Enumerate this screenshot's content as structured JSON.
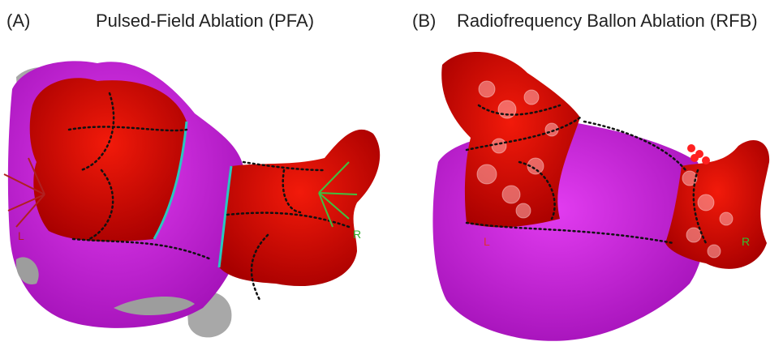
{
  "panels": [
    {
      "letter": "(A)",
      "title": "Pulsed-Field Ablation (PFA)",
      "left_marker": "L",
      "right_marker": "R"
    },
    {
      "letter": "(B)",
      "title": "Radiofrequency Ballon Ablation (RFB)",
      "left_marker": "L",
      "right_marker": "R"
    }
  ]
}
